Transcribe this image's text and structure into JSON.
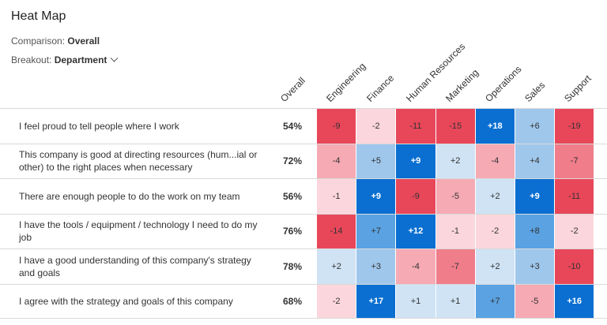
{
  "title": "Heat Map",
  "comparison": {
    "label": "Comparison:",
    "value": "Overall"
  },
  "breakout": {
    "label": "Breakout:",
    "value": "Department"
  },
  "columns": [
    "Overall",
    "Engineering",
    "Finance",
    "Human Resources",
    "Marketing",
    "Operations",
    "Sales",
    "Support"
  ],
  "rows": [
    {
      "question": "I feel proud to tell people where I work",
      "overall": "54%",
      "cells": [
        "-9",
        "-2",
        "-11",
        "-15",
        "+18",
        "+6",
        "-19"
      ]
    },
    {
      "question": "This company is good at directing resources (hum...ial or other) to the right places when necessary",
      "overall": "72%",
      "cells": [
        "-4",
        "+5",
        "+9",
        "+2",
        "-4",
        "+4",
        "-7"
      ]
    },
    {
      "question": "There are enough people to do the work on my team",
      "overall": "56%",
      "cells": [
        "-1",
        "+9",
        "-9",
        "-5",
        "+2",
        "+9",
        "-11"
      ]
    },
    {
      "question": "I have the tools / equipment / technology I need to do my job",
      "overall": "76%",
      "cells": [
        "-14",
        "+7",
        "+12",
        "-1",
        "-2",
        "+8",
        "-2"
      ]
    },
    {
      "question": "I have a good understanding of this company's strategy and goals",
      "overall": "78%",
      "cells": [
        "+2",
        "+3",
        "-4",
        "-7",
        "+2",
        "+3",
        "-10"
      ]
    },
    {
      "question": "I agree with the strategy and goals of this company",
      "overall": "68%",
      "cells": [
        "-2",
        "+17",
        "+1",
        "+1",
        "+7",
        "-5",
        "+16"
      ]
    }
  ],
  "colors": {
    "neg_strong": "#e8475a",
    "neg_mid": "#f07d8a",
    "neg_light": "#f5aab4",
    "neg_faint": "#fbd6dc",
    "pos_faint": "#cfe3f5",
    "pos_light": "#9fc7ec",
    "pos_mid": "#5aa2e2",
    "pos_strong": "#0a6fd1"
  }
}
